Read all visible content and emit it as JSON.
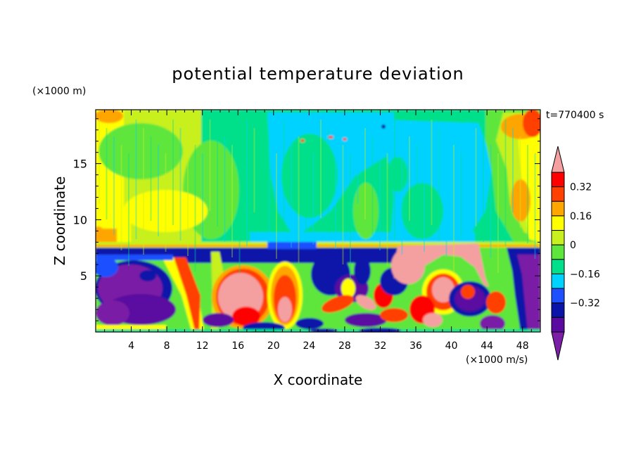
{
  "chart_data": {
    "type": "heatmap",
    "title": "potential temperature deviation",
    "xlabel": "X coordinate",
    "ylabel": "Z coordinate",
    "x_unit": "(×1000 m/s)",
    "y_unit": "(×1000 m)",
    "time_label": "t=770400 s",
    "xlim": [
      0,
      50
    ],
    "ylim": [
      0,
      19.8
    ],
    "x_ticks": [
      "4",
      "8",
      "12",
      "16",
      "20",
      "24",
      "28",
      "32",
      "36",
      "40",
      "44",
      "48"
    ],
    "y_ticks": [
      "5",
      "10",
      "15"
    ],
    "colorbar": {
      "levels": [
        -0.4,
        -0.32,
        -0.24,
        -0.16,
        -0.08,
        0,
        0.08,
        0.16,
        0.24,
        0.32,
        0.4
      ],
      "labels": [
        "0.32",
        "0.16",
        "0",
        "−0.16",
        "−0.32"
      ],
      "colors": [
        "#7a1fa6",
        "#5a0aa0",
        "#0a14a8",
        "#1e50ff",
        "#00d2ff",
        "#00e08a",
        "#5fe63c",
        "#c8f01e",
        "#ffff00",
        "#ffa500",
        "#ff4000",
        "#ff0000",
        "#f5a0a0"
      ],
      "extend": "both"
    }
  }
}
